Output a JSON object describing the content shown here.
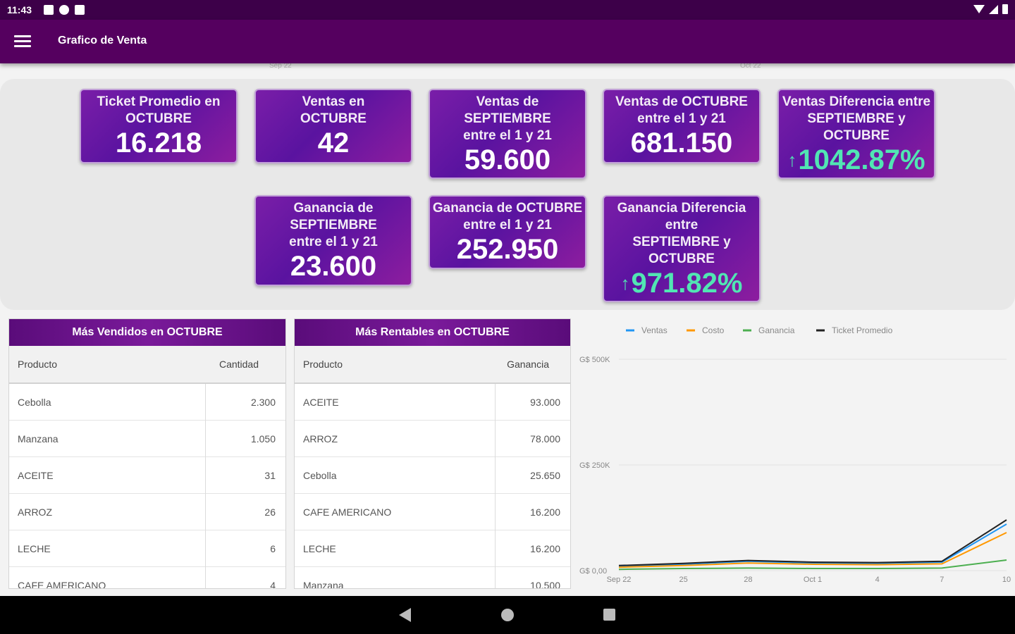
{
  "status": {
    "time": "11:43"
  },
  "appbar": {
    "title": "Grafico de Venta"
  },
  "ghost": {
    "left": "Sep 22",
    "right": "Oct 22"
  },
  "kpis": [
    {
      "label": [
        "Ticket Promedio en",
        "OCTUBRE"
      ],
      "value": "16.218"
    },
    {
      "label": [
        "Ventas en",
        "OCTUBRE"
      ],
      "value": "42"
    },
    {
      "label": [
        "Ventas de",
        "SEPTIEMBRE",
        "entre el 1 y 21"
      ],
      "value": "59.600"
    },
    {
      "label": [
        "Ventas de OCTUBRE",
        "entre el 1 y 21"
      ],
      "value": "681.150"
    },
    {
      "label": [
        "Ventas Diferencia entre",
        "SEPTIEMBRE y",
        "OCTUBRE"
      ],
      "value": "1042.87%",
      "arrow": "↑"
    },
    {
      "label": [
        "Ganancia de",
        "SEPTIEMBRE",
        "entre el 1 y 21"
      ],
      "value": "23.600"
    },
    {
      "label": [
        "Ganancia de OCTUBRE",
        "entre el 1 y 21"
      ],
      "value": "252.950"
    },
    {
      "label": [
        "Ganancia Diferencia",
        "entre",
        "SEPTIEMBRE y",
        "OCTUBRE"
      ],
      "value": "971.82%",
      "arrow": "↑"
    }
  ],
  "tables": [
    {
      "title": "Más Vendidos en OCTUBRE",
      "col1": "Producto",
      "col2": "Cantidad",
      "rows": [
        [
          "Cebolla",
          "2.300"
        ],
        [
          "Manzana",
          "1.050"
        ],
        [
          "ACEITE",
          "31"
        ],
        [
          "ARROZ",
          "26"
        ],
        [
          "LECHE",
          "6"
        ],
        [
          "CAFE AMERICANO",
          "4"
        ]
      ]
    },
    {
      "title": "Más Rentables en OCTUBRE",
      "col1": "Producto",
      "col2": "Ganancia",
      "rows": [
        [
          "ACEITE",
          "93.000"
        ],
        [
          "ARROZ",
          "78.000"
        ],
        [
          "Cebolla",
          "25.650"
        ],
        [
          "CAFE AMERICANO",
          "16.200"
        ],
        [
          "LECHE",
          "16.200"
        ],
        [
          "Manzana",
          "10.500"
        ]
      ]
    }
  ],
  "chart_data": {
    "type": "line",
    "x": [
      "Sep 22",
      "25",
      "28",
      "Oct 1",
      "4",
      "7",
      "10"
    ],
    "ytick_labels": [
      "G$ 0,00",
      "G$ 250K",
      "G$ 500K"
    ],
    "yticks": [
      0,
      250000,
      500000
    ],
    "ylim": [
      0,
      500000
    ],
    "legend_position": "top",
    "series": [
      {
        "name": "Ventas",
        "color": "#2196f3",
        "values": [
          10000,
          15000,
          22000,
          18000,
          17000,
          20000,
          110000
        ]
      },
      {
        "name": "Costo",
        "color": "#ff9800",
        "values": [
          8000,
          12000,
          18000,
          15000,
          14000,
          16000,
          90000
        ]
      },
      {
        "name": "Ganancia",
        "color": "#4caf50",
        "values": [
          3000,
          5000,
          6000,
          5000,
          5000,
          6000,
          25000
        ]
      },
      {
        "name": "Ticket Promedio",
        "color": "#222222",
        "values": [
          12000,
          17000,
          24000,
          20000,
          19000,
          22000,
          120000
        ]
      }
    ]
  }
}
